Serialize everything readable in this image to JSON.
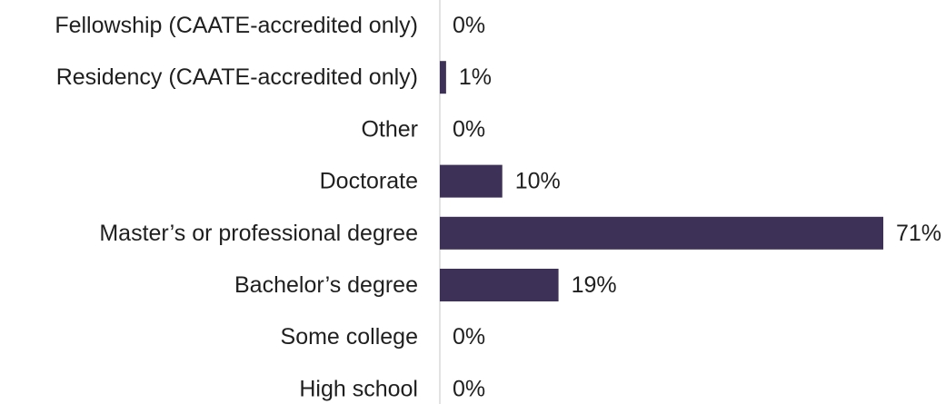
{
  "chart_data": {
    "type": "bar",
    "orientation": "horizontal",
    "categories": [
      "Fellowship (CAATE-accredited only)",
      "Residency (CAATE-accredited only)",
      "Other",
      "Doctorate",
      "Master’s or professional degree",
      "Bachelor’s degree",
      "Some college",
      "High school"
    ],
    "values": [
      0,
      1,
      0,
      10,
      71,
      19,
      0,
      0
    ],
    "value_labels": [
      "0%",
      "1%",
      "0%",
      "10%",
      "71%",
      "19%",
      "0%",
      "0%"
    ],
    "xlim": [
      0,
      76
    ],
    "grid": false,
    "legend": "none",
    "colors": {
      "bar": "#3d3157",
      "axis": "#d9d9d9",
      "text": "#1f1f1f"
    }
  }
}
